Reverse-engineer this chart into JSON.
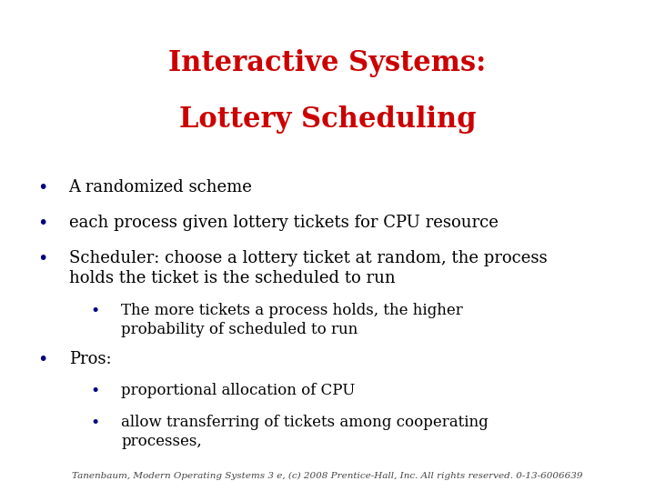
{
  "title_line1": "Interactive Systems:",
  "title_line2": "Lottery Scheduling",
  "title_color": "#cc0000",
  "title_fontsize": 22,
  "body_fontsize": 13,
  "sub_fontsize": 12,
  "bullet_color": "#000080",
  "text_color": "#000000",
  "background_color": "#ffffff",
  "footer": "Tanenbaum, Modern Operating Systems 3 e, (c) 2008 Prentice-Hall, Inc. All rights reserved. 0-13-6006639",
  "footer_fontsize": 7.5,
  "bullet_items": [
    {
      "level": 0,
      "text": "A randomized scheme"
    },
    {
      "level": 0,
      "text": "each process given lottery tickets for CPU resource"
    },
    {
      "level": 0,
      "text": "Scheduler: choose a lottery ticket at random, the process\nholds the ticket is the scheduled to run"
    },
    {
      "level": 1,
      "text": "The more tickets a process holds, the higher\nprobability of scheduled to run"
    },
    {
      "level": 0,
      "text": "Pros:"
    },
    {
      "level": 1,
      "text": "proportional allocation of CPU"
    },
    {
      "level": 1,
      "text": "allow transferring of tickets among cooperating\nprocesses,"
    }
  ],
  "spacings": [
    0.072,
    0.072,
    0.108,
    0.098,
    0.065,
    0.065,
    0.098
  ]
}
